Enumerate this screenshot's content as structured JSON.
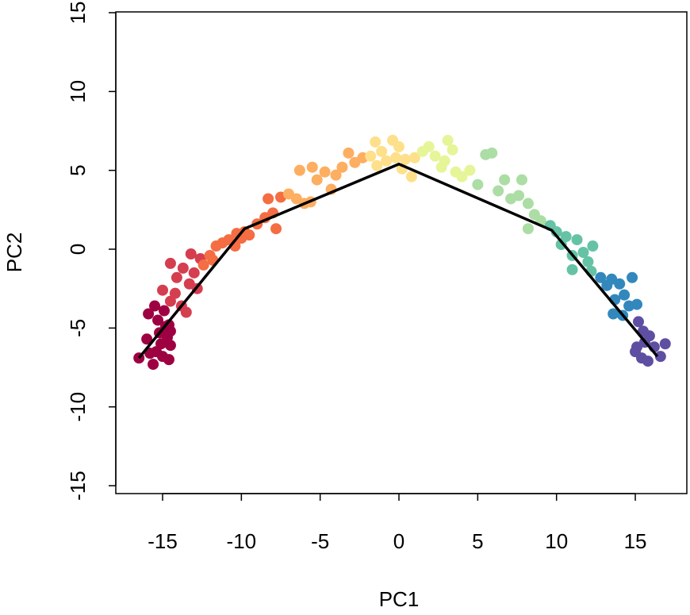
{
  "chart_data": {
    "type": "scatter",
    "x_label": "PC1",
    "y_label": "PC2",
    "xlim": [
      -17.97,
      18.27
    ],
    "ylim": [
      -15.5,
      15.05
    ],
    "xticks": [
      -15,
      -10,
      -5,
      0,
      5,
      10,
      15
    ],
    "yticks": [
      -15,
      -10,
      -5,
      0,
      5,
      10,
      15
    ],
    "grid": false,
    "series": [
      {
        "color": "#9e0142",
        "x": [
          -16.5,
          -16,
          -15.6,
          -15.4,
          -15,
          -14.6,
          -14.5,
          -15.2,
          -14.7,
          -15.9,
          -15.3,
          -14.8,
          -15.5,
          -14.9,
          -14.6,
          -15.8,
          -15.1,
          -14.5
        ],
        "values": [
          -6.9,
          -5.7,
          -7.3,
          -6.5,
          -6.8,
          -7,
          -6.1,
          -5.3,
          -5.6,
          -4.1,
          -4.5,
          -4.9,
          -3.6,
          -3.9,
          -4.8,
          -6.6,
          -6,
          -5.2
        ]
      },
      {
        "color": "#d53e4f",
        "x": [
          -15,
          -14.5,
          -14.2,
          -13.8,
          -13.5,
          -14.5,
          -13.3,
          -13,
          -12.8,
          -13.2,
          -12.6,
          -14.1,
          -13.7
        ],
        "values": [
          -2.6,
          -3.3,
          -2.8,
          -3.6,
          -4,
          -0.9,
          -2.2,
          -1.5,
          -2.5,
          -0.3,
          -0.6,
          -1.8,
          -1.2
        ]
      },
      {
        "color": "#f46d43",
        "x": [
          -12,
          -11.6,
          -11.2,
          -10.8,
          -10.4,
          -10,
          -9.8,
          -10.3,
          -9.5,
          -9,
          -8.5,
          -8,
          -7.8,
          -8.3,
          -7.5,
          -11.8,
          -12.4
        ],
        "values": [
          -0.4,
          0.2,
          0.4,
          0.6,
          0.2,
          0.7,
          1.1,
          1.0,
          0.9,
          1.6,
          2,
          2.3,
          1.3,
          3.2,
          3.3,
          -0.7,
          -1.0
        ]
      },
      {
        "color": "#fdae61",
        "x": [
          -7,
          -6.5,
          -6,
          -5.6,
          -6.3,
          -5.2,
          -4.7,
          -4.3,
          -4,
          -3.6,
          -3.2,
          -2.8,
          -2.3,
          -5.5
        ],
        "values": [
          3.5,
          3.2,
          2.9,
          3.0,
          5,
          4.4,
          4.9,
          3.8,
          4.7,
          5.2,
          6.1,
          5.5,
          5.8,
          5.2
        ]
      },
      {
        "color": "#fee08b",
        "x": [
          -1.8,
          -1.4,
          -1.1,
          -0.8,
          -0.4,
          0,
          0.4,
          0.8,
          0.2,
          -0.2,
          1,
          -1.5
        ],
        "values": [
          5.9,
          5.3,
          6.2,
          5.6,
          6.9,
          6.5,
          5.7,
          4.6,
          5.1,
          5.8,
          5.8,
          6.8
        ]
      },
      {
        "color": "#e6f598",
        "x": [
          1.5,
          1.9,
          2.3,
          2.7,
          3.1,
          3.4,
          3.6,
          2.9,
          4,
          4.5
        ],
        "values": [
          6.2,
          6.5,
          5.9,
          5.2,
          6.9,
          6.3,
          4.9,
          5.6,
          4.6,
          5.0
        ]
      },
      {
        "color": "#abdda4",
        "x": [
          5,
          5.5,
          5.9,
          6.3,
          6.7,
          7.1,
          7.6,
          7.8,
          8.2,
          8.6,
          8.2,
          9
        ],
        "values": [
          4.1,
          6.0,
          6.1,
          3.7,
          4.4,
          3.2,
          3.4,
          4.4,
          2.9,
          2.2,
          1.3,
          1.8
        ]
      },
      {
        "color": "#66c2a5",
        "x": [
          9.6,
          10,
          10.3,
          10.6,
          11,
          11.3,
          11.7,
          12,
          12.3,
          11,
          12.2
        ],
        "values": [
          1.5,
          1.1,
          0.3,
          0.8,
          -0.4,
          0.6,
          -0.2,
          -0.8,
          0.2,
          -1.3,
          -1.4
        ]
      },
      {
        "color": "#3288bd",
        "x": [
          12.8,
          13.2,
          13.5,
          13.7,
          14,
          14.3,
          14.6,
          14.8,
          14.2,
          13.6,
          15.1
        ],
        "values": [
          -1.8,
          -2.3,
          -1.9,
          -3.2,
          -2.2,
          -2.9,
          -3.6,
          -1.8,
          -4.2,
          -4.1,
          -3.5
        ]
      },
      {
        "color": "#5e4fa2",
        "x": [
          15.2,
          15.5,
          15.1,
          15.9,
          15.4,
          15.8,
          16.2,
          16.6,
          16.9,
          15,
          15.6
        ],
        "values": [
          -4.6,
          -5.2,
          -6.2,
          -5.5,
          -6.9,
          -7.1,
          -6.2,
          -6.8,
          -6,
          -6.5,
          -5.9
        ]
      },
      {
        "color": "#000000",
        "line": true,
        "x": [
          -16.5,
          -9.8,
          0,
          9.7,
          16.4
        ],
        "values": [
          -6.9,
          1.3,
          5.4,
          1.2,
          -6.8
        ]
      }
    ]
  }
}
